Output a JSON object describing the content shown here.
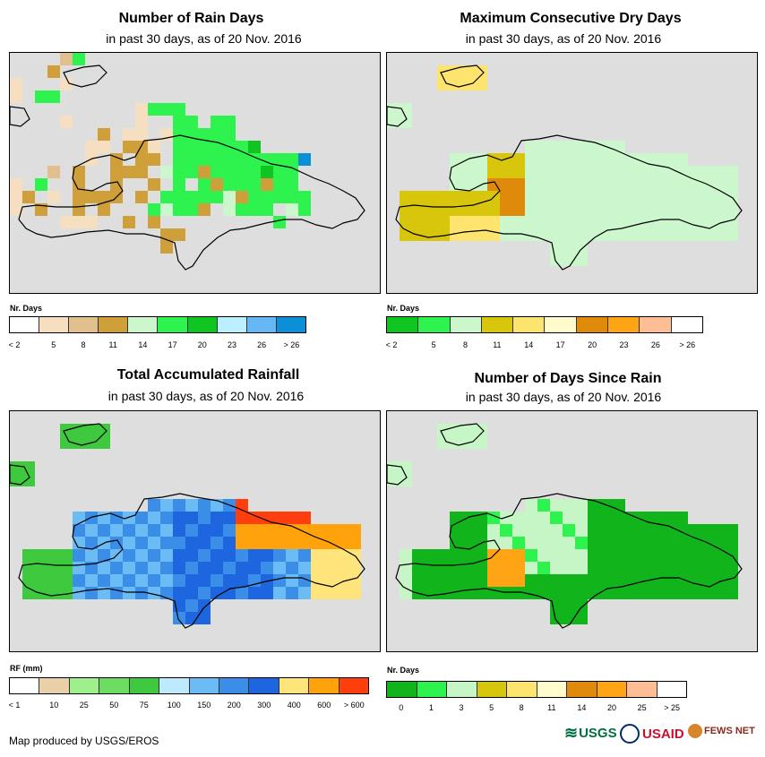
{
  "palettes": {
    "rain_days": [
      "#ffffff",
      "#f5dfc0",
      "#e2c08d",
      "#cf9f3a",
      "#ccf7cc",
      "#2ef24d",
      "#10c421",
      "#bbefff",
      "#66b8f5",
      "#0b8fd6"
    ],
    "dry_days": [
      "#10c421",
      "#2ef24d",
      "#ccf7cc",
      "#d8c60c",
      "#fde46e",
      "#fffbcc",
      "#e08a0c",
      "#ffa515",
      "#fdbe96",
      "#ffffff"
    ],
    "rainfall": [
      "#ffffff",
      "#ead0a8",
      "#9ef08c",
      "#6edb62",
      "#3ec93e",
      "#bfe9ff",
      "#6bbcf5",
      "#3a8ee8",
      "#1d66e0",
      "#ffe47c",
      "#ffa20c",
      "#ff3e0e"
    ],
    "since_rain": [
      "#12b41c",
      "#2ef24d",
      "#c6f5c6",
      "#d8c60c",
      "#fde46e",
      "#fffbcc",
      "#e08a0c",
      "#ffa515",
      "#fdbe96",
      "#ffffff"
    ]
  },
  "panels": [
    {
      "title": "Number of Rain Days",
      "subtitle": "in past 30 days, as of 20 Nov. 2016",
      "legend_title": "Nr. Days",
      "palette": "rain_days",
      "labels": [
        "< 2",
        "5",
        "8",
        "11",
        "14",
        "17",
        "20",
        "23",
        "26",
        "> 26"
      ],
      "label_mode": "boundary",
      "grid": [
        "....25..........",
        "...3........................",
        "1...1..........................",
        "1.55............................",
        "..........1555..................",
        "....1.....1..55.55..............",
        ".......3.11.155555...............",
        "......11.331.5555556..............",
        "......1.3.33.55555555559..........",
        "...2.3..333.45535555655...........",
        "1.5..3..3..3.5.53555355..........",
        "13.1.3333.3.555554355555.........",
        "1.3..3.3...54553.4555.45.........",
        "....111..3.3.........5...........",
        "............33...................",
        "............3...................."
      ]
    },
    {
      "title": "Maximum Consecutive Dry Days",
      "subtitle": "in past 30 days, as of 20 Nov. 2016",
      "legend_title": "Nr. Days",
      "palette": "dry_days",
      "labels": [
        "< 2",
        "5",
        "8",
        "11",
        "14",
        "17",
        "20",
        "23",
        "26",
        "> 26"
      ],
      "label_mode": "boundary",
      "grid": []
    },
    {
      "title": "Total Accumulated Rainfall",
      "subtitle": "in past 30 days, as of 20 Nov. 2016",
      "legend_title": "RF (mm)",
      "palette": "rainfall",
      "labels": [
        "< 1",
        "10",
        "25",
        "50",
        "75",
        "100",
        "150",
        "200",
        "300",
        "400",
        "600",
        "> 600"
      ],
      "label_mode": "boundary",
      "grid": []
    },
    {
      "title": "Number of Days Since Rain",
      "subtitle": "in past 30 days, as of 20 Nov. 2016",
      "legend_title": "Nr. Days",
      "palette": "since_rain",
      "labels": [
        "0",
        "1",
        "3",
        "5",
        "8",
        "11",
        "14",
        "20",
        "25",
        "> 25"
      ],
      "label_mode": "center",
      "grid": []
    }
  ],
  "credit": "Map produced by USGS/EROS",
  "logos": {
    "usgs": "USGS",
    "usaid": "USAID",
    "fewsnet": "FEWS NET"
  }
}
